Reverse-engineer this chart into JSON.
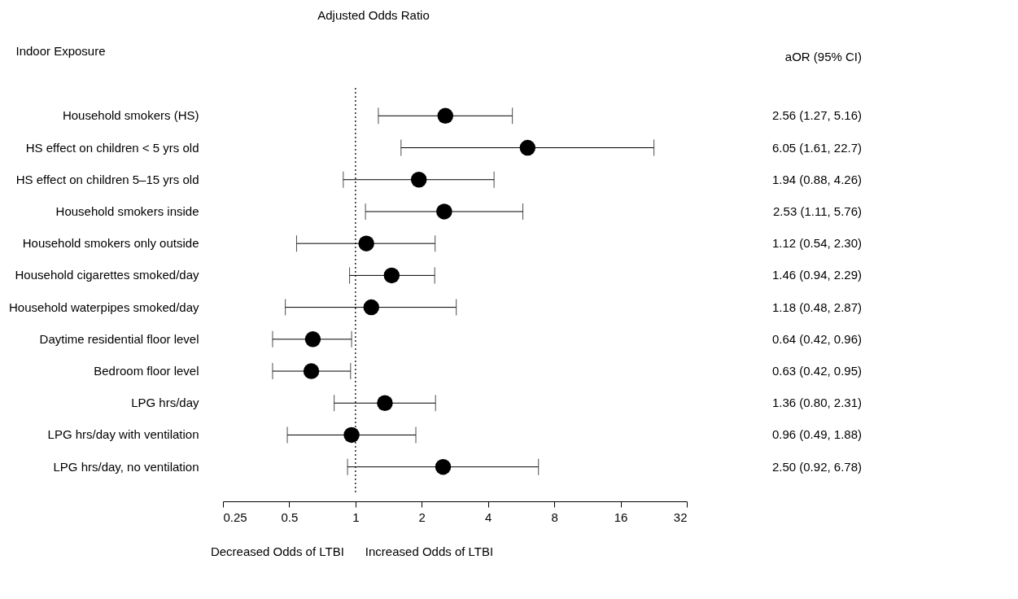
{
  "chart_data": {
    "type": "scatter",
    "orientation": "horizontal",
    "title": "Adjusted Odds Ratio",
    "ylabel": "Indoor Exposure",
    "categories": [
      "Household smokers (HS)",
      "HS effect on children < 5 yrs old",
      "HS effect on children 5–15 yrs old",
      "Household smokers inside",
      "Household smokers only outside",
      "Household cigarettes smoked/day",
      "Household waterpipes smoked/day",
      "Daytime residential floor level",
      "Bedroom floor level",
      "LPG hrs/day",
      "LPG hrs/day with ventilation",
      "LPG hrs/day, no ventilation"
    ],
    "series": [
      {
        "color": "#000000",
        "values": [
          2.56,
          6.05,
          1.94,
          2.53,
          1.12,
          1.46,
          1.18,
          0.64,
          0.63,
          1.36,
          0.96,
          2.5
        ],
        "errors": [
          [
            1.27,
            5.16
          ],
          [
            1.61,
            22.7
          ],
          [
            0.88,
            4.26
          ],
          [
            1.11,
            5.76
          ],
          [
            0.54,
            2.3
          ],
          [
            0.94,
            2.29
          ],
          [
            0.48,
            2.87
          ],
          [
            0.42,
            0.96
          ],
          [
            0.42,
            0.95
          ],
          [
            0.8,
            2.31
          ],
          [
            0.49,
            1.88
          ],
          [
            0.92,
            6.78
          ]
        ],
        "value_labels": [
          "2.56 (1.27, 5.16)",
          "6.05 (1.61, 22.7)",
          "1.94 (0.88, 4.26)",
          "2.53 (1.11, 5.76)",
          "1.12 (0.54, 2.30)",
          "1.46 (0.94, 2.29)",
          "1.18 (0.48, 2.87)",
          "0.64 (0.42, 0.96)",
          "0.63 (0.42, 0.95)",
          "1.36 (0.80, 2.31)",
          "0.96 (0.49, 1.88)",
          "2.50 (0.92, 6.78)"
        ]
      }
    ],
    "log": "x",
    "xlim": [
      0.25,
      32
    ],
    "xticks": [
      0.25,
      0.5,
      1,
      2,
      4,
      8,
      16,
      32
    ],
    "grid": false,
    "marker": "circle",
    "ref_lines": [
      {
        "axis": "x",
        "value": 1,
        "line_style": "dotted"
      }
    ],
    "annotations": [
      "aOR (95% CI)",
      "Decreased Odds of LTBI",
      "Increased Odds of LTBI"
    ]
  }
}
